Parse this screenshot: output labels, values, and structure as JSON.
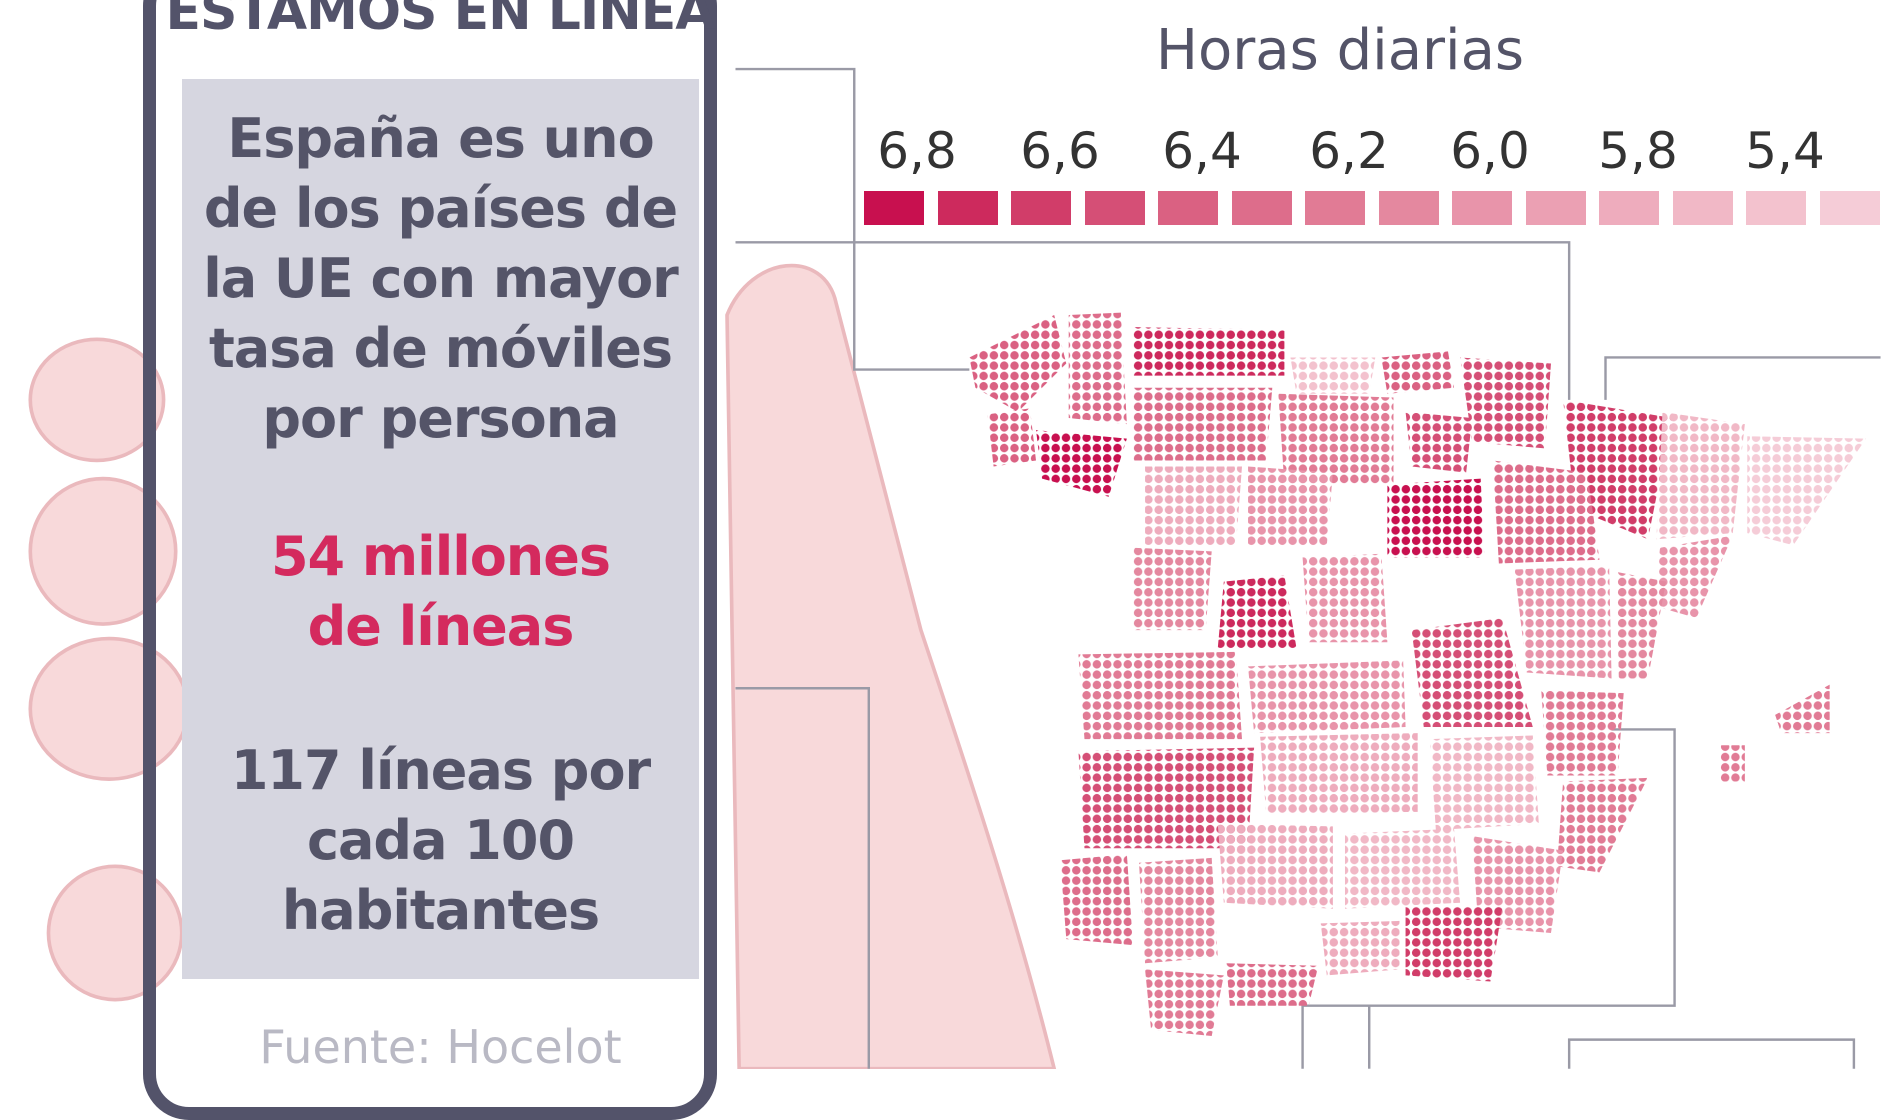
{
  "phone": {
    "title": "ESTAMOS EN LÍNEA",
    "intro_lines": [
      "España es uno",
      "de los países de",
      "la UE con mayor",
      "tasa de móviles",
      "por persona"
    ],
    "highlight_lines": [
      "54 millones",
      "de líneas"
    ],
    "stat_lines": [
      "117 líneas por",
      "cada 100",
      "habitantes"
    ],
    "source": "Fuente: Hocelot"
  },
  "map": {
    "subtitle": "Horas diarias",
    "legend_labels": [
      "6,8",
      "6,6",
      "6,4",
      "6,2",
      "6,0",
      "5,8",
      "5,4"
    ],
    "legend_colors": [
      "#c8104f",
      "#cd2a5d",
      "#d13d69",
      "#d54f76",
      "#da6182",
      "#dd6d8b",
      "#e17b95",
      "#e4889f",
      "#e894aa",
      "#eba0b3",
      "#eeacbd",
      "#f1b8c6",
      "#f3c2ce",
      "#f5ccd7"
    ],
    "region_values": [
      6.4,
      6.3,
      6.4,
      6.8,
      6.7,
      5.6,
      6.4,
      6.5,
      6.3,
      6.2,
      6.5,
      6.6,
      5.7,
      5.5,
      5.8,
      6.0,
      6.8,
      6.3,
      6.0,
      6.1,
      6.7,
      6.0,
      6.0,
      6.1,
      6.5,
      6.2,
      6.0,
      6.2,
      6.5,
      5.8,
      5.7,
      6.2,
      6.3,
      6.1,
      5.8,
      5.7,
      6.0,
      5.8,
      6.6,
      6.2,
      6.3,
      6.2,
      6.2
    ]
  }
}
